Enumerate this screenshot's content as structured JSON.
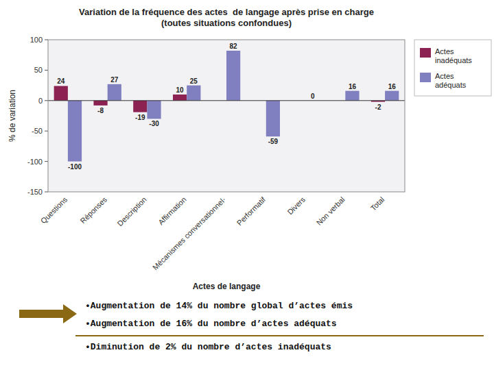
{
  "chart_data": {
    "type": "bar",
    "title": "Variation de la fréquence des actes  de langage après prise en charge\n(toutes situations confondues)",
    "xlabel": "Actes de langage",
    "ylabel": "% de variation",
    "categories": [
      "Questions",
      "Réponses",
      "Description",
      "Affirmation",
      "Mécanismes conversationnel·",
      "Performatif",
      "Divers",
      "Non verbal",
      "Total"
    ],
    "series": [
      {
        "name": "Actes\ninadéquats",
        "color": "#8B2252",
        "values": [
          24,
          -8,
          -19,
          10,
          0,
          0,
          0,
          0,
          -2
        ],
        "value_labels": [
          "24",
          "-8",
          "-19",
          "10",
          null,
          null,
          null,
          null,
          "-2"
        ]
      },
      {
        "name": "Actes\nadéquats",
        "color": "#8080C0",
        "values": [
          -100,
          27,
          -30,
          25,
          82,
          -59,
          0,
          16,
          16
        ]
      }
    ],
    "ylim": [
      -150,
      100
    ],
    "yticks": [
      -150,
      -100,
      -50,
      0,
      50,
      100
    ],
    "grid": false,
    "legend": "right",
    "data_labels": true,
    "annotations": [
      "•Augmentation de 14% du nombre global d’actes émis",
      "•Augmentation de 16% du nombre d’actes adéquats",
      "•Diminution de 2% du nombre d’actes inadéquats"
    ]
  }
}
